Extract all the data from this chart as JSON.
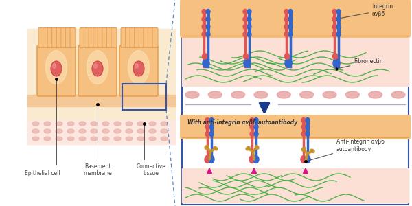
{
  "bg_color": "#ffffff",
  "left_bg": "#ffffff",
  "cell_color": "#f5c080",
  "cell_border": "#e8a050",
  "cell_gradient_inner": "#fde0b0",
  "nucleus_color": "#e06060",
  "nucleus_border": "#cc4444",
  "basement_color": "#f5d5b0",
  "connective_dot_color": "#e8b0a8",
  "connective_bg": "#fce8e0",
  "integrin_red": "#e05555",
  "integrin_blue": "#3366cc",
  "fibronectin_green": "#33aa33",
  "fibronectin_bg": "#fce0d8",
  "antibody_color": "#c8922a",
  "arrow_color": "#1a3a8a",
  "magenta_arrow": "#dd1188",
  "dot_color": "#e8a0a0",
  "pink_dot_color": "#e8a0a0",
  "right_border": "#3355aa",
  "dashed_color": "#5588cc",
  "zoom_box_color": "#3355aa",
  "label_integrin": "Integrin\nαvβ6",
  "label_fibronectin": "Fibronectin",
  "label_with": "With anti-integrin αvβ6 autoantibody",
  "label_antibody": "Anti-integrin αvβ6\nautoantibody",
  "label_epithelial": "Epithelial cell",
  "label_basement": "Basement\nmembrane",
  "label_connective": "Connective\ntissue",
  "text_color": "#444444"
}
